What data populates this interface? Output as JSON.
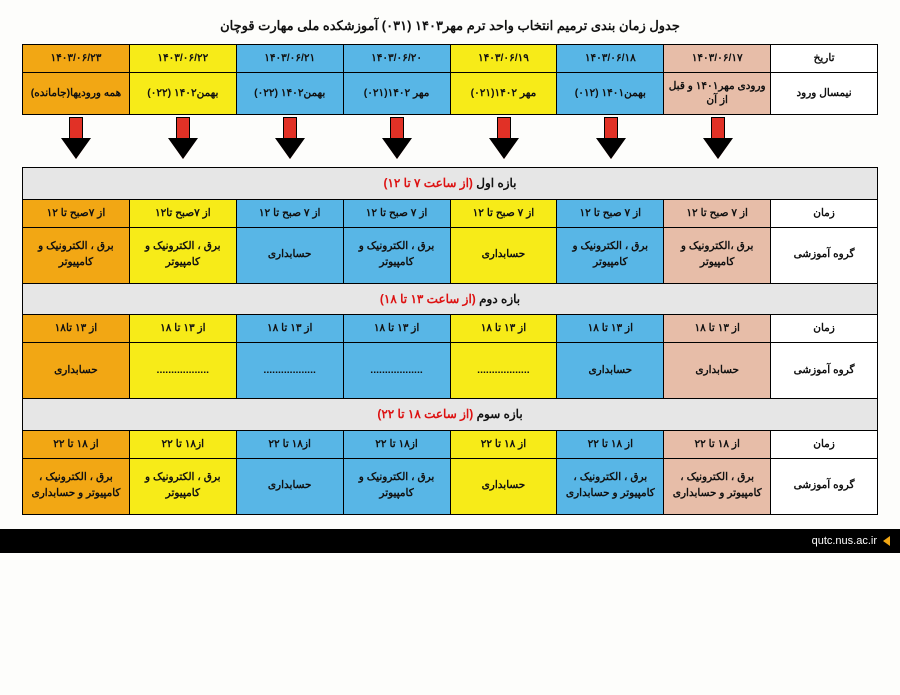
{
  "title": "جدول زمان بندی ترمیم انتخاب واحد ترم مهر۱۴۰۳ (۰۳۱) آموزشکده ملی مهارت قوچان",
  "header": {
    "label_date": "تاریخ",
    "label_sem": "نیمسال ورود",
    "dates": [
      "۱۴۰۳/۰۶/۱۷",
      "۱۴۰۳/۰۶/۱۸",
      "۱۴۰۳/۰۶/۱۹",
      "۱۴۰۳/۰۶/۲۰",
      "۱۴۰۳/۰۶/۲۱",
      "۱۴۰۳/۰۶/۲۲",
      "۱۴۰۳/۰۶/۲۳"
    ],
    "semesters": [
      "ورودی مهر۱۴۰۱ و قبل از آن",
      "بهمن۱۴۰۱ (۰۱۲)",
      "مهر ۱۴۰۲(۰۲۱)",
      "مهر ۱۴۰۲(۰۲۱)",
      "بهمن۱۴۰۲ (۰۲۲)",
      "بهمن۱۴۰۲ (۰۲۲)",
      "همه ورودیها(جامانده)"
    ],
    "colors": [
      "c-pink",
      "c-blue",
      "c-yellow",
      "c-blue",
      "c-blue",
      "c-yellow",
      "c-orange"
    ]
  },
  "sections": [
    {
      "title_black": "بازه اول",
      "title_red": "(از ساعت ۷ تا ۱۲)",
      "time_label": "زمان",
      "group_label": "گروه آموزشی",
      "times": [
        "از ۷ صبح تا ۱۲",
        "از ۷ صبح تا ۱۲",
        "از ۷ صبح تا ۱۲",
        "از ۷ صبح تا ۱۲",
        "از ۷ صبح تا ۱۲",
        "از ۷صبح تا۱۲",
        "از ۷صبح تا ۱۲"
      ],
      "groups": [
        "برق ،الکترونیک و کامپیوتر",
        "برق ، الکترونیک و کامپیوتر",
        "حسابداری",
        "برق ، الکترونیک و کامپیوتر",
        "حسابداری",
        "برق ، الکترونیک و کامپیوتر",
        "برق ، الکترونیک و کامپیوتر"
      ]
    },
    {
      "title_black": "بازه دوم",
      "title_red": "(از ساعت ۱۳ تا ۱۸)",
      "time_label": "زمان",
      "group_label": "گروه آموزشی",
      "times": [
        "از ۱۳ تا ۱۸",
        "از  ۱۳ تا ۱۸",
        "از ۱۳  تا ۱۸",
        "از ۱۳  تا ۱۸",
        "از ۱۳  تا ۱۸",
        "از ۱۳  تا ۱۸",
        "از ۱۳ تا۱۸"
      ],
      "groups": [
        "حسابداری",
        "حسابداری",
        "..................",
        "..................",
        "..................",
        "..................",
        "حسابداری"
      ]
    },
    {
      "title_black": "بازه سوم",
      "title_red": "(از ساعت ۱۸ تا ۲۲)",
      "time_label": "زمان",
      "group_label": "گروه آموزشی",
      "times": [
        "از ۱۸ تا ۲۲",
        "از ۱۸ تا ۲۲",
        "از ۱۸ تا ۲۲",
        "از۱۸ تا ۲۲",
        "از۱۸ تا ۲۲",
        "از۱۸ تا ۲۲",
        "از ۱۸ تا ۲۲"
      ],
      "groups": [
        "برق ، الکترونیک ، کامپیوتر و حسابداری",
        "برق ، الکترونیک ، کامپیوتر و حسابداری",
        "حسابداری",
        "برق ، الکترونیک و کامپیوتر",
        "حسابداری",
        "برق ، الکترونیک و کامپیوتر",
        "برق ، الکترونیک ، کامپیوتر و حسابداری"
      ]
    }
  ],
  "footer": "qutc.nus.ac.ir"
}
